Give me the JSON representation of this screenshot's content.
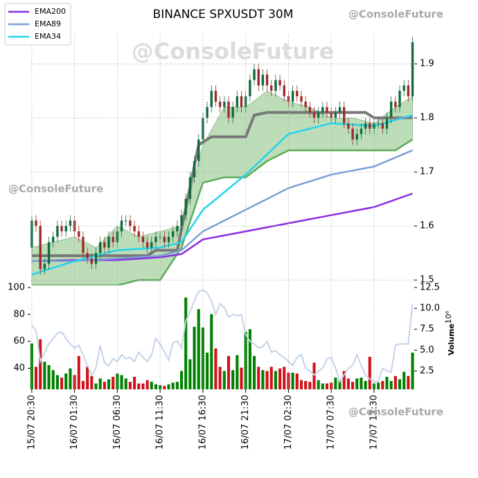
{
  "chart_data": {
    "type": "candlestick",
    "title": "BINANCE SPXUSDT 30M",
    "watermarks": [
      "@ConsoleFuture",
      "@ConsoleFuture",
      "@ConsoleFuture",
      "@ConsoleFuture"
    ],
    "xlim": [
      -0.3,
      89.4
    ],
    "xticks": [
      {
        "value": 0,
        "label": "15/07 20:30"
      },
      {
        "value": 10,
        "label": "16/07 01:30"
      },
      {
        "value": 20,
        "label": "16/07 06:30"
      },
      {
        "value": 30,
        "label": "16/07 11:30"
      },
      {
        "value": 40,
        "label": "16/07 16:30"
      },
      {
        "value": 50,
        "label": "16/07 21:30"
      },
      {
        "value": 60,
        "label": "17/07 02:30"
      },
      {
        "value": 70,
        "label": "17/07 07:30"
      },
      {
        "value": 80,
        "label": "17/07 12:30"
      }
    ],
    "ylim": [
      1.49,
      1.954
    ],
    "yticks": [
      1.5,
      1.6,
      1.7,
      1.8,
      1.9
    ],
    "grid": true,
    "up_color": "#116b3c",
    "down_color": "#9e2a2b",
    "candles": {
      "open": [
        1.56,
        1.61,
        1.6,
        1.52,
        1.53,
        1.57,
        1.58,
        1.6,
        1.59,
        1.6,
        1.61,
        1.59,
        1.58,
        1.55,
        1.54,
        1.53,
        1.55,
        1.57,
        1.56,
        1.58,
        1.57,
        1.59,
        1.61,
        1.61,
        1.6,
        1.59,
        1.58,
        1.57,
        1.56,
        1.57,
        1.58,
        1.58,
        1.57,
        1.58,
        1.59,
        1.6,
        1.62,
        1.65,
        1.69,
        1.72,
        1.76,
        1.8,
        1.82,
        1.85,
        1.83,
        1.82,
        1.83,
        1.8,
        1.82,
        1.84,
        1.82,
        1.84,
        1.87,
        1.89,
        1.86,
        1.88,
        1.86,
        1.85,
        1.87,
        1.86,
        1.84,
        1.83,
        1.85,
        1.84,
        1.83,
        1.82,
        1.81,
        1.8,
        1.81,
        1.82,
        1.81,
        1.8,
        1.81,
        1.82,
        1.79,
        1.78,
        1.76,
        1.77,
        1.78,
        1.79,
        1.78,
        1.79,
        1.79,
        1.78,
        1.8,
        1.83,
        1.82,
        1.85,
        1.86,
        1.84
      ],
      "high": [
        1.62,
        1.62,
        1.61,
        1.54,
        1.58,
        1.59,
        1.61,
        1.61,
        1.61,
        1.62,
        1.62,
        1.6,
        1.59,
        1.56,
        1.55,
        1.56,
        1.58,
        1.58,
        1.59,
        1.59,
        1.6,
        1.62,
        1.62,
        1.62,
        1.61,
        1.6,
        1.59,
        1.58,
        1.58,
        1.59,
        1.59,
        1.59,
        1.59,
        1.6,
        1.61,
        1.63,
        1.66,
        1.7,
        1.73,
        1.77,
        1.81,
        1.83,
        1.86,
        1.86,
        1.84,
        1.84,
        1.84,
        1.83,
        1.85,
        1.85,
        1.85,
        1.88,
        1.9,
        1.9,
        1.89,
        1.89,
        1.87,
        1.88,
        1.88,
        1.87,
        1.85,
        1.86,
        1.86,
        1.85,
        1.84,
        1.83,
        1.82,
        1.82,
        1.83,
        1.83,
        1.82,
        1.82,
        1.83,
        1.83,
        1.8,
        1.79,
        1.78,
        1.79,
        1.8,
        1.8,
        1.8,
        1.8,
        1.8,
        1.81,
        1.84,
        1.84,
        1.86,
        1.87,
        1.87,
        1.95
      ],
      "low": [
        1.55,
        1.59,
        1.51,
        1.51,
        1.52,
        1.56,
        1.57,
        1.58,
        1.58,
        1.59,
        1.58,
        1.57,
        1.54,
        1.53,
        1.52,
        1.52,
        1.54,
        1.55,
        1.55,
        1.56,
        1.56,
        1.58,
        1.6,
        1.59,
        1.58,
        1.57,
        1.56,
        1.55,
        1.55,
        1.56,
        1.57,
        1.56,
        1.56,
        1.57,
        1.58,
        1.59,
        1.61,
        1.64,
        1.68,
        1.71,
        1.75,
        1.79,
        1.81,
        1.82,
        1.81,
        1.81,
        1.79,
        1.79,
        1.81,
        1.81,
        1.81,
        1.83,
        1.86,
        1.85,
        1.85,
        1.85,
        1.84,
        1.84,
        1.85,
        1.83,
        1.82,
        1.82,
        1.83,
        1.82,
        1.81,
        1.8,
        1.79,
        1.79,
        1.8,
        1.8,
        1.79,
        1.79,
        1.8,
        1.78,
        1.77,
        1.75,
        1.75,
        1.76,
        1.77,
        1.77,
        1.77,
        1.78,
        1.77,
        1.77,
        1.79,
        1.81,
        1.81,
        1.84,
        1.83,
        1.83
      ],
      "close": [
        1.61,
        1.6,
        1.52,
        1.53,
        1.57,
        1.58,
        1.6,
        1.59,
        1.6,
        1.61,
        1.59,
        1.58,
        1.55,
        1.54,
        1.53,
        1.55,
        1.57,
        1.56,
        1.58,
        1.57,
        1.59,
        1.61,
        1.61,
        1.6,
        1.59,
        1.58,
        1.57,
        1.56,
        1.57,
        1.58,
        1.58,
        1.57,
        1.58,
        1.59,
        1.6,
        1.62,
        1.65,
        1.69,
        1.72,
        1.76,
        1.8,
        1.82,
        1.85,
        1.83,
        1.82,
        1.83,
        1.8,
        1.82,
        1.84,
        1.82,
        1.84,
        1.87,
        1.89,
        1.86,
        1.88,
        1.86,
        1.85,
        1.87,
        1.86,
        1.84,
        1.83,
        1.85,
        1.84,
        1.83,
        1.82,
        1.81,
        1.8,
        1.81,
        1.82,
        1.81,
        1.8,
        1.81,
        1.82,
        1.79,
        1.78,
        1.76,
        1.77,
        1.78,
        1.79,
        1.78,
        1.79,
        1.79,
        1.78,
        1.8,
        1.83,
        1.82,
        1.85,
        1.86,
        1.84,
        1.94
      ]
    },
    "band": {
      "color": "#b5d9b0",
      "line_color": "#5aaa5a",
      "x": [
        0,
        5,
        10,
        15,
        20,
        25,
        30,
        35,
        40,
        45,
        50,
        55,
        60,
        65,
        70,
        75,
        80,
        85,
        89
      ],
      "upper": [
        1.56,
        1.57,
        1.58,
        1.56,
        1.6,
        1.58,
        1.59,
        1.6,
        1.75,
        1.82,
        1.82,
        1.85,
        1.83,
        1.82,
        1.8,
        1.8,
        1.79,
        1.82,
        1.84
      ],
      "lower": [
        1.49,
        1.49,
        1.49,
        1.49,
        1.49,
        1.5,
        1.5,
        1.56,
        1.68,
        1.69,
        1.69,
        1.72,
        1.74,
        1.74,
        1.74,
        1.74,
        1.74,
        1.74,
        1.76
      ]
    },
    "trend": {
      "color": "#777777",
      "x": [
        0,
        27,
        29,
        34,
        39,
        42,
        50,
        52,
        55,
        78,
        80,
        89
      ],
      "values": [
        1.545,
        1.545,
        1.555,
        1.555,
        1.75,
        1.765,
        1.765,
        1.805,
        1.81,
        1.81,
        1.8,
        1.8
      ]
    },
    "series": [
      {
        "name": "EMA200",
        "color": "#8a2be2",
        "x": [
          0,
          10,
          20,
          30,
          35,
          40,
          50,
          60,
          70,
          80,
          89
        ],
        "values": [
          1.535,
          1.537,
          1.537,
          1.542,
          1.548,
          1.575,
          1.59,
          1.605,
          1.62,
          1.635,
          1.66
        ]
      },
      {
        "name": "EMA89",
        "color": "#7b9fd4",
        "x": [
          0,
          10,
          20,
          30,
          35,
          40,
          50,
          60,
          70,
          80,
          89
        ],
        "values": [
          1.535,
          1.535,
          1.54,
          1.545,
          1.555,
          1.59,
          1.63,
          1.67,
          1.695,
          1.71,
          1.74
        ]
      },
      {
        "name": "EMA34",
        "color": "#22d3ee",
        "x": [
          0,
          10,
          20,
          30,
          35,
          40,
          50,
          60,
          70,
          80,
          89
        ],
        "values": [
          1.51,
          1.535,
          1.555,
          1.56,
          1.57,
          1.63,
          1.695,
          1.77,
          1.79,
          1.785,
          1.805
        ]
      }
    ],
    "legend": "upper left",
    "rsi": {
      "color": "#c3d3ea",
      "ylim": [
        24.3,
        100
      ],
      "yticks": [
        40,
        60,
        80,
        100
      ],
      "values": [
        72,
        68,
        45,
        52,
        58,
        62,
        66,
        67,
        62,
        58,
        55,
        57,
        50,
        42,
        35,
        40,
        57,
        44,
        42,
        47,
        45,
        50,
        47,
        48,
        45,
        52,
        48,
        45,
        50,
        62,
        58,
        52,
        46,
        59,
        60,
        55,
        75,
        82,
        90,
        97,
        98,
        96,
        90,
        80,
        88,
        85,
        78,
        80,
        79,
        80,
        65,
        60,
        58,
        55,
        56,
        60,
        52,
        53,
        50,
        48,
        45,
        42,
        48,
        50,
        40,
        38,
        35,
        38,
        40,
        47,
        48,
        40,
        30,
        35,
        40,
        42,
        50,
        42,
        35,
        32,
        30,
        30,
        40,
        38,
        37,
        57,
        58,
        58,
        58,
        88
      ]
    },
    "volume": {
      "label": "Volume",
      "scale_label": "10⁶",
      "up_color": "#008000",
      "down_color": "#d0111b",
      "y2lim": [
        0.3,
        12.5
      ],
      "y2ticks": [
        {
          "value": 2.5,
          "label": "2.5"
        },
        {
          "value": 5,
          "label": "5.0"
        },
        {
          "value": 7.5,
          "label": "7.5"
        },
        {
          "value": 10,
          "label": "10.0"
        },
        {
          "value": 12.5,
          "label": "12.5"
        }
      ],
      "values": [
        5.8,
        3.0,
        6.3,
        3.6,
        3.2,
        2.6,
        2.0,
        1.7,
        2.2,
        2.8,
        2.0,
        4.3,
        1.3,
        3.0,
        1.9,
        1.0,
        1.6,
        1.2,
        1.5,
        1.8,
        2.2,
        2.0,
        1.6,
        1.2,
        1.8,
        1.0,
        1.0,
        1.4,
        1.2,
        0.9,
        0.8,
        0.7,
        0.9,
        1.1,
        1.2,
        2.5,
        11.3,
        3.9,
        7.8,
        9.9,
        7.7,
        4.7,
        9.3,
        5.2,
        3.0,
        2.5,
        4.3,
        2.6,
        4.4,
        2.9,
        7.2,
        7.5,
        4.3,
        3.0,
        2.6,
        2.5,
        3.0,
        2.5,
        2.8,
        3.0,
        2.3,
        2.3,
        2.2,
        1.4,
        1.3,
        1.2,
        3.5,
        1.4,
        1.0,
        1.0,
        1.1,
        1.7,
        1.4,
        2.5,
        1.6,
        1.2,
        1.6,
        1.7,
        1.3,
        4.2,
        1.0,
        1.1,
        1.3,
        1.8,
        1.3,
        1.9,
        1.5,
        2.4,
        1.9,
        4.7
      ]
    }
  }
}
